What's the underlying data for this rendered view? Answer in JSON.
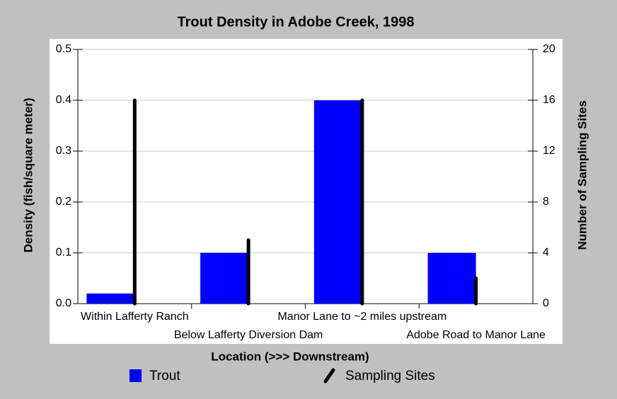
{
  "chart_data": {
    "type": "bar",
    "title": "Trout Density in Adobe Creek, 1998",
    "x_label": "Location (>>> Downstream)",
    "y_label": "Density (fish/square meter)",
    "y2_label": "Number of Sampling Sites",
    "categories": [
      "Within Lafferty Ranch",
      "Below Lafferty Diversion Dam",
      "Manor Lane to ~2 miles upstream",
      "Adobe Road to Manor Lane"
    ],
    "series": [
      {
        "name": "Trout",
        "color": "#0000ff",
        "type": "bar",
        "values": [
          0.02,
          0.1,
          0.4,
          0.1
        ]
      },
      {
        "name": "Sampling Sites",
        "color": "#000000",
        "type": "stem",
        "axis": "y2",
        "values": [
          16,
          5,
          16,
          2
        ]
      }
    ],
    "ylim": [
      0,
      0.5
    ],
    "yticks": [
      {
        "value": 0,
        "label": "0.0"
      },
      0.1,
      0.2,
      0.3,
      0.4,
      0.5
    ],
    "y2lim": [
      0,
      20
    ],
    "y2ticks": [
      0,
      4,
      8,
      12,
      16,
      20
    ],
    "grid": true
  }
}
